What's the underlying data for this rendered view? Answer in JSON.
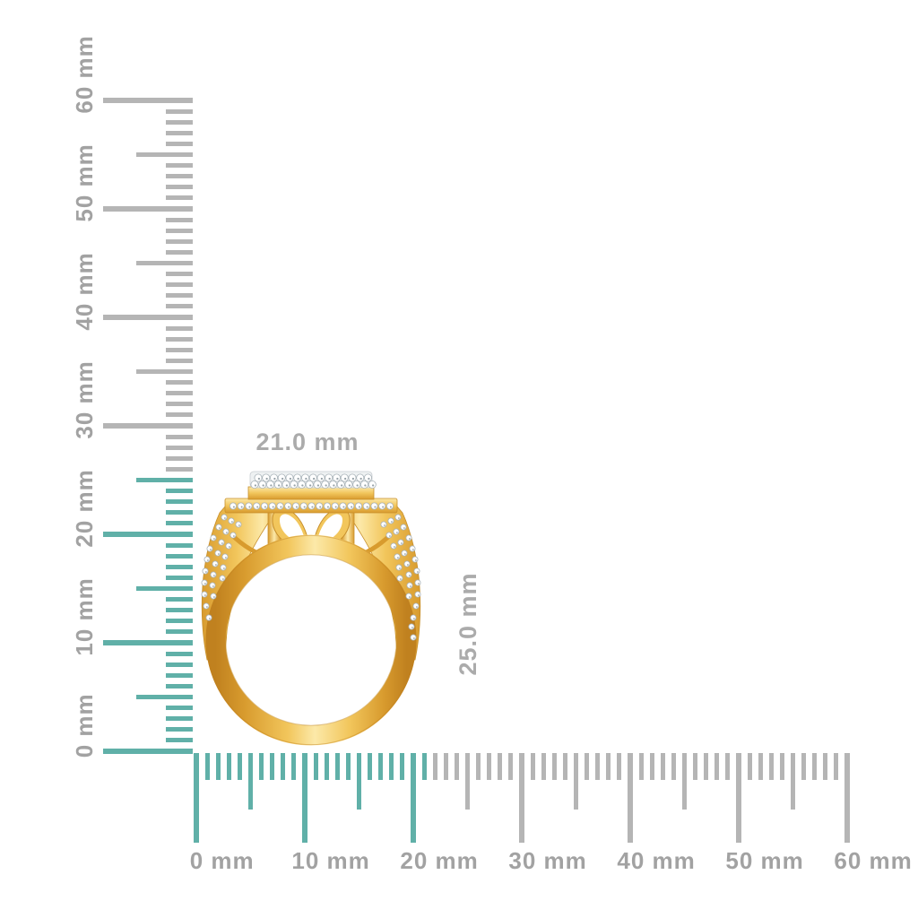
{
  "page": {
    "background": "#ffffff",
    "subject": "Yellow gold split-shank diamond ring (side profile) shown to scale against millimeter rulers"
  },
  "dimensions": {
    "width_label": "21.0 mm",
    "height_label": "25.0 mm",
    "label_color": "#ababab"
  },
  "rulers": {
    "unit": "mm",
    "highlight_color": "#60b0a8",
    "tick_color": "#b5b5b5",
    "label_color": "#a2a2a2",
    "vertical": {
      "min_mm": 0,
      "max_mm": 60,
      "minor_step_mm": 1,
      "mid_step_mm": 5,
      "major_step_mm": 10,
      "highlight_to_mm": 25,
      "labels": [
        "0 mm",
        "10 mm",
        "20 mm",
        "30 mm",
        "40 mm",
        "50 mm",
        "60 mm"
      ]
    },
    "horizontal": {
      "min_mm": 0,
      "max_mm": 60,
      "minor_step_mm": 1,
      "mid_step_mm": 5,
      "major_step_mm": 10,
      "highlight_to_mm": 21,
      "labels": [
        "0 mm",
        "10 mm",
        "20 mm",
        "30 mm",
        "40 mm",
        "50 mm",
        "60 mm"
      ]
    }
  },
  "ring": {
    "description": "gold ring with pave diamond halo head, butterfly gallery and triple-row split shank",
    "colors": {
      "gold_light": "#fce9a9",
      "gold": "#f2c65c",
      "gold_dark": "#d89b2e",
      "gold_deep": "#c0811f",
      "outline": "#c78f2b",
      "pave_base": "#eef1f2",
      "pave_base_edge": "#c9ced2",
      "diamond_fill": "#ffffff",
      "diamond_stroke": "#a7b1b7",
      "diamond_speck": "#97a2a8"
    }
  }
}
